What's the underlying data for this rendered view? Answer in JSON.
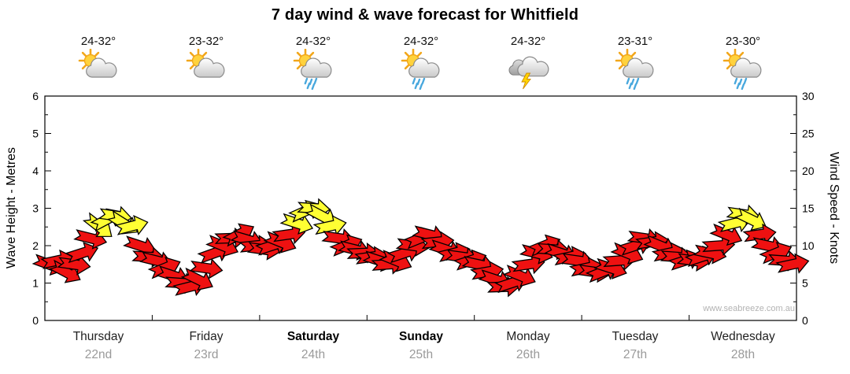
{
  "title": "7 day wind & wave forecast for Whitfield",
  "watermark": "www.seabreeze.com.au",
  "days": [
    {
      "name": "Thursday",
      "date": "22nd",
      "temp": "24-32°",
      "icon": "sun-cloud",
      "weekend": false
    },
    {
      "name": "Friday",
      "date": "23rd",
      "temp": "23-32°",
      "icon": "sun-cloud",
      "weekend": false
    },
    {
      "name": "Saturday",
      "date": "24th",
      "temp": "24-32°",
      "icon": "sun-cloud-rain",
      "weekend": true
    },
    {
      "name": "Sunday",
      "date": "25th",
      "temp": "24-32°",
      "icon": "sun-cloud-rain",
      "weekend": true
    },
    {
      "name": "Monday",
      "date": "26th",
      "temp": "24-32°",
      "icon": "thunderstorm",
      "weekend": false
    },
    {
      "name": "Tuesday",
      "date": "27th",
      "temp": "23-31°",
      "icon": "sun-cloud-rain",
      "weekend": false
    },
    {
      "name": "Wednesday",
      "date": "28th",
      "temp": "23-30°",
      "icon": "sun-cloud-rain",
      "weekend": false
    }
  ],
  "chart_data": {
    "type": "wind-arrow-series",
    "title": "7 day wind & wave forecast for Whitfield",
    "x_categories": [
      "Thursday 22nd",
      "Friday 23rd",
      "Saturday 24th",
      "Sunday 25th",
      "Monday 26th",
      "Tuesday 27th",
      "Wednesday 28th"
    ],
    "left_axis": {
      "label": "Wave Height - Metres",
      "min": 0,
      "max": 6,
      "ticks": [
        0,
        1,
        2,
        3,
        4,
        5,
        6
      ]
    },
    "right_axis": {
      "label": "Wind Speed - Knots",
      "min": 0,
      "max": 30,
      "ticks": [
        0,
        5,
        10,
        15,
        20,
        25,
        30
      ]
    },
    "grid": false,
    "arrow_colors": {
      "normal": "#ee1111",
      "strong": "#ffff33",
      "outline": "#000000"
    },
    "strong_threshold_knots": 12.5,
    "points_format": "[wind_speed_knots, arrow_rotation_deg]",
    "series": [
      {
        "day": "Thursday",
        "points": [
          [
            7.5,
            20
          ],
          [
            8,
            -12
          ],
          [
            6.5,
            28
          ],
          [
            7.5,
            8
          ],
          [
            9,
            -18
          ],
          [
            11,
            14
          ],
          [
            12.6,
            38
          ],
          [
            13.5,
            -28
          ],
          [
            14,
            8
          ],
          [
            13,
            32
          ],
          [
            12.6,
            -14
          ],
          [
            10,
            18
          ],
          [
            8.5,
            4
          ]
        ]
      },
      {
        "day": "Friday",
        "points": [
          [
            8,
            14
          ],
          [
            7,
            -22
          ],
          [
            6,
            18
          ],
          [
            5,
            4
          ],
          [
            4.5,
            -14
          ],
          [
            5.5,
            26
          ],
          [
            7,
            8
          ],
          [
            9,
            -20
          ],
          [
            10,
            22
          ],
          [
            11,
            -2
          ],
          [
            11.5,
            -28
          ],
          [
            10.8,
            16
          ],
          [
            10,
            -6
          ]
        ]
      },
      {
        "day": "Saturday",
        "points": [
          [
            9.5,
            8
          ],
          [
            10,
            -18
          ],
          [
            10.5,
            22
          ],
          [
            11.5,
            -8
          ],
          [
            13,
            18
          ],
          [
            14.6,
            -24
          ],
          [
            15,
            4
          ],
          [
            14,
            28
          ],
          [
            12.6,
            -12
          ],
          [
            11,
            8
          ],
          [
            10,
            -22
          ],
          [
            9.5,
            14
          ],
          [
            9,
            -2
          ]
        ]
      },
      {
        "day": "Sunday",
        "points": [
          [
            8.5,
            -8
          ],
          [
            8,
            18
          ],
          [
            7.5,
            -4
          ],
          [
            8,
            22
          ],
          [
            9,
            -18
          ],
          [
            10,
            8
          ],
          [
            11,
            -22
          ],
          [
            11.5,
            14
          ],
          [
            10.5,
            -6
          ],
          [
            9.5,
            18
          ],
          [
            9,
            -14
          ],
          [
            8.5,
            8
          ],
          [
            8,
            -18
          ]
        ]
      },
      {
        "day": "Monday",
        "points": [
          [
            7.5,
            12
          ],
          [
            6.5,
            -10
          ],
          [
            5.5,
            18
          ],
          [
            4.5,
            -2
          ],
          [
            5,
            -18
          ],
          [
            6,
            22
          ],
          [
            7.5,
            -8
          ],
          [
            9,
            14
          ],
          [
            10,
            -22
          ],
          [
            9.5,
            4
          ],
          [
            9,
            18
          ],
          [
            8.5,
            -12
          ],
          [
            8,
            8
          ]
        ]
      },
      {
        "day": "Tuesday",
        "points": [
          [
            7,
            -12
          ],
          [
            6.5,
            8
          ],
          [
            6.5,
            -22
          ],
          [
            7,
            18
          ],
          [
            8,
            -4
          ],
          [
            9,
            22
          ],
          [
            10,
            -18
          ],
          [
            11,
            8
          ],
          [
            10.5,
            -8
          ],
          [
            10,
            22
          ],
          [
            9,
            -12
          ],
          [
            8.5,
            4
          ],
          [
            8,
            -18
          ]
        ]
      },
      {
        "day": "Wednesday",
        "points": [
          [
            8,
            8
          ],
          [
            8.5,
            -18
          ],
          [
            9,
            12
          ],
          [
            10,
            -4
          ],
          [
            11.5,
            22
          ],
          [
            13,
            -14
          ],
          [
            14.2,
            8
          ],
          [
            13.5,
            26
          ],
          [
            11.5,
            -8
          ],
          [
            10,
            12
          ],
          [
            9,
            -22
          ],
          [
            8,
            4
          ],
          [
            7.5,
            -12
          ]
        ]
      }
    ]
  }
}
